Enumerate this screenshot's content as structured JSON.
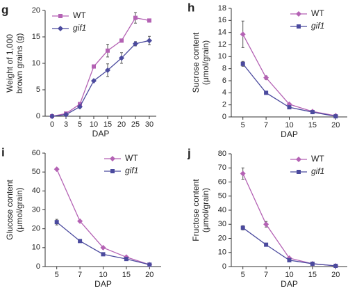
{
  "chart_data": [
    {
      "type": "line",
      "panel": "g",
      "ylabel": [
        "Weight of 1,000",
        "brown grains (g)"
      ],
      "xlabel": "DAP",
      "categories": [
        "0",
        "3",
        "5",
        "10",
        "15",
        "20",
        "25",
        "30"
      ],
      "ylim": [
        0,
        20
      ],
      "yticks": [
        0,
        5,
        10,
        15,
        20
      ],
      "legend": "upper left",
      "series": [
        {
          "name": "WT",
          "color": "#b462b4",
          "marker": "square",
          "values": [
            0,
            0.5,
            2.3,
            9.4,
            12.4,
            14.3,
            18.6,
            18.1
          ],
          "errors": [
            0.1,
            0.2,
            0.3,
            0.3,
            1.2,
            0.3,
            1.0,
            0.3
          ]
        },
        {
          "name": "gif1",
          "color": "#4b4a9e",
          "marker": "diamond",
          "values": [
            0,
            0.3,
            1.8,
            6.7,
            8.7,
            11.0,
            13.7,
            14.3
          ],
          "errors": [
            0.1,
            0.1,
            0.3,
            0.2,
            1.2,
            1.0,
            0.4,
            0.8
          ]
        }
      ]
    },
    {
      "type": "line",
      "panel": "h",
      "ylabel": [
        "Sucrose content",
        "(μmol/grain)"
      ],
      "xlabel": "DAP",
      "categories": [
        "5",
        "7",
        "10",
        "15",
        "20"
      ],
      "ylim": [
        0,
        18
      ],
      "yticks": [
        0,
        2,
        4,
        6,
        8,
        10,
        12,
        14,
        16,
        18
      ],
      "legend": "upper right",
      "series": [
        {
          "name": "WT",
          "color": "#b462b4",
          "marker": "diamond",
          "values": [
            13.7,
            6.5,
            2.1,
            0.9,
            0.2
          ],
          "errors": [
            2.2,
            0.3,
            0.1,
            0.1,
            0.1
          ]
        },
        {
          "name": "gif1",
          "color": "#4b4a9e",
          "marker": "square",
          "values": [
            8.8,
            4.0,
            1.6,
            0.8,
            0.1
          ],
          "errors": [
            0.4,
            0.2,
            0.1,
            0.1,
            0.1
          ]
        }
      ]
    },
    {
      "type": "line",
      "panel": "i",
      "ylabel": [
        "Glucose content",
        "(μmol/grain)"
      ],
      "xlabel": "DAP",
      "categories": [
        "5",
        "7",
        "10",
        "15",
        "20"
      ],
      "ylim": [
        0,
        60
      ],
      "yticks": [
        0,
        10,
        20,
        30,
        40,
        50,
        60
      ],
      "legend": "upper right",
      "series": [
        {
          "name": "WT",
          "color": "#b462b4",
          "marker": "diamond",
          "values": [
            51.5,
            24,
            10,
            5,
            1
          ],
          "errors": [
            0.6,
            0.3,
            0.3,
            0.3,
            0.2
          ]
        },
        {
          "name": "gif1",
          "color": "#4b4a9e",
          "marker": "square",
          "values": [
            23.5,
            13.5,
            6.5,
            4,
            1
          ],
          "errors": [
            1.5,
            0.6,
            0.4,
            0.3,
            0.2
          ]
        }
      ]
    },
    {
      "type": "line",
      "panel": "j",
      "ylabel": [
        "Fructose content",
        "(μmol/grain)"
      ],
      "xlabel": "DAP",
      "categories": [
        "5",
        "7",
        "10",
        "15",
        "20"
      ],
      "ylim": [
        0,
        80
      ],
      "yticks": [
        0,
        10,
        20,
        30,
        40,
        50,
        60,
        70,
        80
      ],
      "legend": "upper right",
      "series": [
        {
          "name": "WT",
          "color": "#b462b4",
          "marker": "diamond",
          "values": [
            66,
            30,
            6,
            2,
            0.5
          ],
          "errors": [
            4,
            2,
            0.5,
            0.3,
            0.2
          ]
        },
        {
          "name": "gif1",
          "color": "#4b4a9e",
          "marker": "square",
          "values": [
            27.5,
            15.5,
            4.5,
            2,
            0.5
          ],
          "errors": [
            1.5,
            0.6,
            0.4,
            0.3,
            0.2
          ]
        }
      ]
    }
  ]
}
